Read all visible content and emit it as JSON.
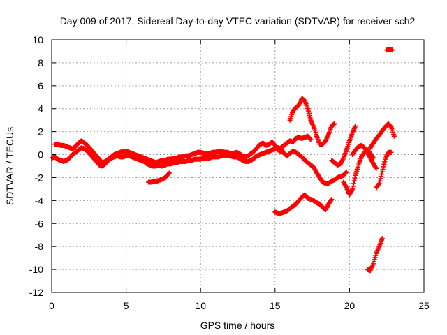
{
  "chart_data": {
    "type": "scatter",
    "title": "Day 009 of 2017, Sidereal Day-to-day VTEC variation (SDTVAR) for receiver sch2",
    "xlabel": "GPS time / hours",
    "ylabel": "SDTVAR / TECUs",
    "xlim": [
      0,
      25
    ],
    "ylim": [
      -12,
      10
    ],
    "xticks": [
      0,
      5,
      10,
      15,
      20,
      25
    ],
    "yticks": [
      -12,
      -10,
      -8,
      -6,
      -4,
      -2,
      0,
      2,
      4,
      6,
      8,
      10
    ],
    "grid": true,
    "legend": "none",
    "marker": "plus",
    "color": "#ff0000",
    "series": [
      {
        "points": [
          [
            0.0,
            -0.3
          ],
          [
            0.2,
            -0.2
          ],
          [
            0.4,
            -0.4
          ],
          [
            0.6,
            -0.5
          ],
          [
            0.8,
            -0.6
          ],
          [
            1.0,
            -0.5
          ],
          [
            1.2,
            -0.3
          ],
          [
            1.4,
            0.0
          ],
          [
            1.6,
            0.2
          ],
          [
            1.8,
            0.4
          ],
          [
            2.0,
            0.6
          ],
          [
            2.2,
            0.5
          ],
          [
            2.4,
            0.3
          ],
          [
            2.6,
            0.0
          ],
          [
            2.8,
            -0.3
          ],
          [
            3.0,
            -0.6
          ],
          [
            3.2,
            -0.9
          ],
          [
            3.4,
            -1.0
          ],
          [
            3.6,
            -0.8
          ],
          [
            3.8,
            -0.5
          ],
          [
            4.0,
            -0.3
          ],
          [
            4.2,
            -0.2
          ],
          [
            4.4,
            -0.1
          ],
          [
            4.6,
            -0.2
          ],
          [
            4.8,
            -0.2
          ],
          [
            5.0,
            -0.1
          ],
          [
            5.2,
            -0.1
          ],
          [
            5.4,
            -0.2
          ],
          [
            5.6,
            -0.3
          ],
          [
            5.8,
            -0.4
          ],
          [
            6.0,
            -0.5
          ],
          [
            6.2,
            -0.6
          ],
          [
            6.4,
            -0.8
          ],
          [
            6.6,
            -0.9
          ],
          [
            6.8,
            -1.0
          ],
          [
            7.0,
            -1.0
          ],
          [
            7.2,
            -0.9
          ],
          [
            7.4,
            -1.0
          ],
          [
            7.6,
            -0.9
          ],
          [
            7.8,
            -0.8
          ],
          [
            8.0,
            -0.8
          ],
          [
            8.2,
            -0.7
          ],
          [
            8.4,
            -0.7
          ],
          [
            8.6,
            -0.6
          ],
          [
            8.8,
            -0.6
          ],
          [
            9.0,
            -0.6
          ],
          [
            9.2,
            -0.5
          ],
          [
            9.4,
            -0.5
          ],
          [
            9.6,
            -0.4
          ],
          [
            9.8,
            -0.4
          ],
          [
            10.0,
            -0.4
          ],
          [
            10.2,
            -0.3
          ],
          [
            10.4,
            -0.3
          ],
          [
            10.6,
            -0.3
          ],
          [
            10.8,
            -0.2
          ],
          [
            11.0,
            -0.2
          ],
          [
            11.2,
            -0.2
          ],
          [
            11.4,
            -0.1
          ],
          [
            11.6,
            -0.1
          ],
          [
            11.8,
            -0.1
          ],
          [
            12.0,
            -0.1
          ],
          [
            12.2,
            -0.2
          ],
          [
            12.4,
            -0.2
          ],
          [
            12.6,
            -0.3
          ],
          [
            12.8,
            -0.5
          ],
          [
            13.0,
            -0.6
          ],
          [
            13.2,
            -0.6
          ],
          [
            13.4,
            -0.5
          ],
          [
            13.6,
            -0.3
          ],
          [
            13.8,
            -0.1
          ],
          [
            14.0,
            0.0
          ],
          [
            14.2,
            0.1
          ],
          [
            14.4,
            0.2
          ],
          [
            14.6,
            0.3
          ],
          [
            14.8,
            0.4
          ],
          [
            15.0,
            0.5
          ],
          [
            15.2,
            0.6
          ],
          [
            15.4,
            0.5
          ],
          [
            15.6,
            0.1
          ],
          [
            15.8,
            -0.1
          ],
          [
            16.0,
            0.1
          ],
          [
            16.2,
            0.3
          ],
          [
            16.4,
            0.2
          ],
          [
            16.6,
            0.0
          ],
          [
            16.8,
            -0.2
          ],
          [
            17.0,
            -0.5
          ],
          [
            17.2,
            -0.7
          ],
          [
            17.4,
            -0.9
          ],
          [
            17.6,
            -1.1
          ],
          [
            17.8,
            -1.6
          ],
          [
            18.0,
            -2.0
          ],
          [
            18.2,
            -2.4
          ],
          [
            18.4,
            -2.5
          ],
          [
            18.6,
            -2.5
          ],
          [
            18.8,
            -2.3
          ],
          [
            19.0,
            -2.2
          ],
          [
            19.2,
            -2.0
          ],
          [
            19.4,
            -1.9
          ],
          [
            19.6,
            -1.8
          ],
          [
            19.8,
            -1.5
          ]
        ]
      },
      {
        "points": [
          [
            0.2,
            0.9
          ],
          [
            0.4,
            0.9
          ],
          [
            0.6,
            0.8
          ],
          [
            0.8,
            0.8
          ],
          [
            1.0,
            0.7
          ],
          [
            1.2,
            0.6
          ],
          [
            1.4,
            0.5
          ],
          [
            1.6,
            0.7
          ],
          [
            1.8,
            1.0
          ],
          [
            2.0,
            1.2
          ],
          [
            2.2,
            1.0
          ],
          [
            2.4,
            0.8
          ],
          [
            2.6,
            0.5
          ],
          [
            2.8,
            0.2
          ],
          [
            3.0,
            -0.1
          ],
          [
            3.2,
            -0.4
          ],
          [
            3.4,
            -0.7
          ],
          [
            3.6,
            -0.6
          ],
          [
            3.8,
            -0.4
          ],
          [
            4.0,
            -0.2
          ],
          [
            4.2,
            0.0
          ],
          [
            4.4,
            0.1
          ],
          [
            4.6,
            0.2
          ],
          [
            4.8,
            0.3
          ],
          [
            5.0,
            0.3
          ],
          [
            5.2,
            0.2
          ],
          [
            5.4,
            0.1
          ],
          [
            5.6,
            0.0
          ],
          [
            5.8,
            -0.1
          ],
          [
            6.0,
            -0.2
          ],
          [
            6.2,
            -0.3
          ],
          [
            6.4,
            -0.4
          ],
          [
            6.6,
            -0.5
          ],
          [
            6.8,
            -0.6
          ],
          [
            7.0,
            -0.7
          ],
          [
            7.2,
            -0.6
          ],
          [
            7.4,
            -0.5
          ],
          [
            7.6,
            -0.5
          ],
          [
            7.8,
            -0.4
          ],
          [
            8.0,
            -0.4
          ],
          [
            8.2,
            -0.3
          ],
          [
            8.4,
            -0.3
          ],
          [
            8.6,
            -0.2
          ],
          [
            8.8,
            -0.2
          ],
          [
            9.0,
            -0.1
          ],
          [
            9.2,
            -0.1
          ],
          [
            9.4,
            0.0
          ],
          [
            9.6,
            0.1
          ],
          [
            9.8,
            0.2
          ],
          [
            10.0,
            0.2
          ],
          [
            10.2,
            0.1
          ],
          [
            10.4,
            0.1
          ],
          [
            10.6,
            0.1
          ],
          [
            10.8,
            0.2
          ],
          [
            11.0,
            0.2
          ],
          [
            11.2,
            0.3
          ],
          [
            11.4,
            0.3
          ],
          [
            11.6,
            0.2
          ],
          [
            11.8,
            0.2
          ],
          [
            12.0,
            0.1
          ],
          [
            12.2,
            0.1
          ],
          [
            12.4,
            0.2
          ],
          [
            12.6,
            0.1
          ],
          [
            12.8,
            -0.1
          ],
          [
            13.0,
            -0.2
          ],
          [
            13.2,
            -0.1
          ],
          [
            13.4,
            0.1
          ],
          [
            13.6,
            0.3
          ],
          [
            13.8,
            0.6
          ],
          [
            14.0,
            0.9
          ],
          [
            14.2,
            1.0
          ],
          [
            14.4,
            0.8
          ],
          [
            14.6,
            0.9
          ],
          [
            14.8,
            1.1
          ],
          [
            15.0,
            0.8
          ],
          [
            15.2,
            0.5
          ],
          [
            15.4,
            0.2
          ]
        ]
      },
      {
        "points": [
          [
            6.5,
            -2.4
          ],
          [
            6.7,
            -2.4
          ],
          [
            6.9,
            -2.3
          ],
          [
            7.1,
            -2.3
          ],
          [
            7.3,
            -2.2
          ],
          [
            7.5,
            -2.1
          ],
          [
            7.7,
            -1.9
          ],
          [
            7.9,
            -1.6
          ]
        ]
      },
      {
        "points": [
          [
            16.0,
            3.0
          ],
          [
            16.2,
            3.8
          ],
          [
            16.4,
            4.1
          ],
          [
            16.6,
            4.3
          ],
          [
            16.8,
            4.9
          ],
          [
            17.0,
            4.7
          ],
          [
            17.2,
            4.0
          ],
          [
            17.4,
            3.0
          ],
          [
            17.6,
            2.4
          ],
          [
            17.8,
            1.6
          ],
          [
            18.0,
            0.9
          ],
          [
            18.2,
            0.9
          ],
          [
            18.4,
            1.2
          ],
          [
            18.6,
            1.8
          ],
          [
            18.8,
            2.5
          ],
          [
            19.0,
            2.7
          ]
        ]
      },
      {
        "points": [
          [
            15.2,
            0.4
          ],
          [
            15.4,
            0.6
          ],
          [
            15.6,
            0.8
          ],
          [
            15.8,
            1.0
          ],
          [
            16.0,
            1.2
          ],
          [
            16.2,
            1.1
          ],
          [
            16.4,
            1.4
          ],
          [
            16.6,
            1.5
          ],
          [
            16.8,
            1.4
          ],
          [
            17.0,
            1.5
          ],
          [
            17.2,
            1.6
          ],
          [
            17.4,
            1.3
          ]
        ]
      },
      {
        "points": [
          [
            15.0,
            -5.0
          ],
          [
            15.2,
            -5.1
          ],
          [
            15.4,
            -5.1
          ],
          [
            15.6,
            -5.0
          ],
          [
            15.8,
            -4.9
          ],
          [
            16.0,
            -4.7
          ],
          [
            16.2,
            -4.5
          ],
          [
            16.4,
            -4.3
          ],
          [
            16.6,
            -4.0
          ],
          [
            16.8,
            -3.7
          ],
          [
            17.0,
            -3.5
          ],
          [
            17.2,
            -3.8
          ],
          [
            17.4,
            -3.9
          ],
          [
            17.6,
            -4.0
          ],
          [
            17.8,
            -4.2
          ],
          [
            18.0,
            -4.3
          ],
          [
            18.2,
            -4.6
          ],
          [
            18.4,
            -4.8
          ],
          [
            18.6,
            -4.3
          ],
          [
            18.8,
            -3.9
          ]
        ]
      },
      {
        "points": [
          [
            18.8,
            -0.5
          ],
          [
            19.0,
            -0.7
          ],
          [
            19.2,
            -0.9
          ],
          [
            19.4,
            -0.8
          ],
          [
            19.6,
            -0.3
          ],
          [
            19.8,
            0.4
          ],
          [
            20.0,
            1.2
          ],
          [
            20.2,
            1.9
          ],
          [
            20.4,
            2.5
          ]
        ]
      },
      {
        "points": [
          [
            19.6,
            -2.4
          ],
          [
            19.8,
            -2.9
          ],
          [
            20.0,
            -3.5
          ],
          [
            20.2,
            -3.0
          ],
          [
            20.4,
            -1.8
          ],
          [
            20.6,
            -0.9
          ],
          [
            20.8,
            -0.2
          ],
          [
            21.0,
            0.2
          ],
          [
            21.2,
            0.4
          ],
          [
            21.4,
            0.1
          ],
          [
            21.6,
            -0.3
          ]
        ]
      },
      {
        "points": [
          [
            20.2,
            0.0
          ],
          [
            20.4,
            0.4
          ],
          [
            20.6,
            0.7
          ],
          [
            20.8,
            0.8
          ],
          [
            21.0,
            0.6
          ],
          [
            21.2,
            0.2
          ],
          [
            21.4,
            -0.3
          ],
          [
            21.6,
            -0.8
          ],
          [
            21.8,
            -1.2
          ]
        ]
      },
      {
        "points": [
          [
            21.4,
            0.6
          ],
          [
            21.6,
            1.0
          ],
          [
            21.8,
            1.4
          ],
          [
            22.0,
            1.7
          ],
          [
            22.2,
            2.1
          ],
          [
            22.4,
            2.4
          ],
          [
            22.6,
            2.7
          ],
          [
            22.8,
            2.4
          ],
          [
            23.0,
            1.6
          ]
        ]
      },
      {
        "points": [
          [
            21.8,
            -2.9
          ],
          [
            22.0,
            -2.5
          ],
          [
            22.2,
            -1.5
          ],
          [
            22.4,
            -0.4
          ],
          [
            22.6,
            0.2
          ],
          [
            22.8,
            0.2
          ]
        ]
      },
      {
        "points": [
          [
            21.2,
            -10.0
          ],
          [
            21.4,
            -10.1
          ],
          [
            21.6,
            -9.5
          ],
          [
            21.8,
            -8.6
          ],
          [
            22.0,
            -8.0
          ],
          [
            22.2,
            -7.3
          ]
        ]
      },
      {
        "points": [
          [
            22.5,
            9.1
          ],
          [
            22.7,
            9.2
          ],
          [
            22.9,
            9.1
          ]
        ]
      }
    ]
  }
}
